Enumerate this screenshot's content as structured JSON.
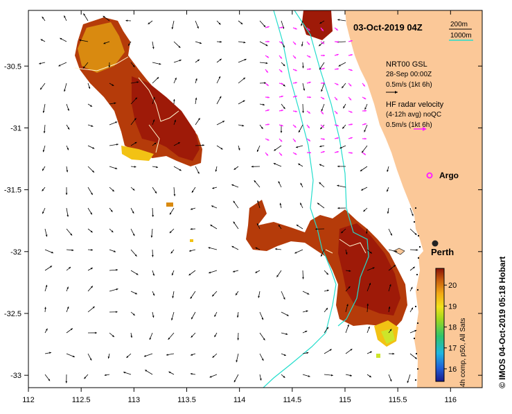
{
  "title": "03-Oct-2019 04Z",
  "depth_legend": {
    "line1": "200m",
    "line2": "1000m",
    "line2_color": "#22ddcc",
    "line1_color": "#000000"
  },
  "vectors_legend": {
    "nrt_title": "NRT00 GSL",
    "nrt_date": "28-Sep 00:00Z",
    "nrt_scale": "0.5m/s (1kt 6h)",
    "hf_title": "HF radar velocity",
    "hf_sub": "(4-12h avg) noQC",
    "hf_scale": "0.5m/s (1kt 6h)",
    "hf_color": "#ff22ff"
  },
  "markers": {
    "argo": {
      "label": "Argo",
      "color": "#ff22ff"
    },
    "city": {
      "label": "Perth"
    }
  },
  "colorbar": {
    "ticks": [
      "20",
      "19",
      "18",
      "17",
      "16"
    ],
    "label": "4h comp, p50, All Sats"
  },
  "side_caption": "© IMOS 04-Oct-2019 05:18 Hobart",
  "axes": {
    "x_ticks": [
      "112",
      "112.5",
      "113",
      "113.5",
      "114",
      "114.5",
      "115",
      "115.5",
      "116"
    ],
    "y_ticks": [
      "-30.5",
      "-31",
      "-31.5",
      "-32",
      "-32.5",
      "-33"
    ]
  },
  "colors": {
    "land": "#fbc898",
    "sst_warm": "#b53b0a",
    "sst_hot": "#9e1a08",
    "sst_mid": "#d98a10",
    "sst_cool": "#f2c214",
    "sst_green": "#cde52a",
    "isobath": "#22ddcc",
    "hf": "#ff22ff"
  }
}
